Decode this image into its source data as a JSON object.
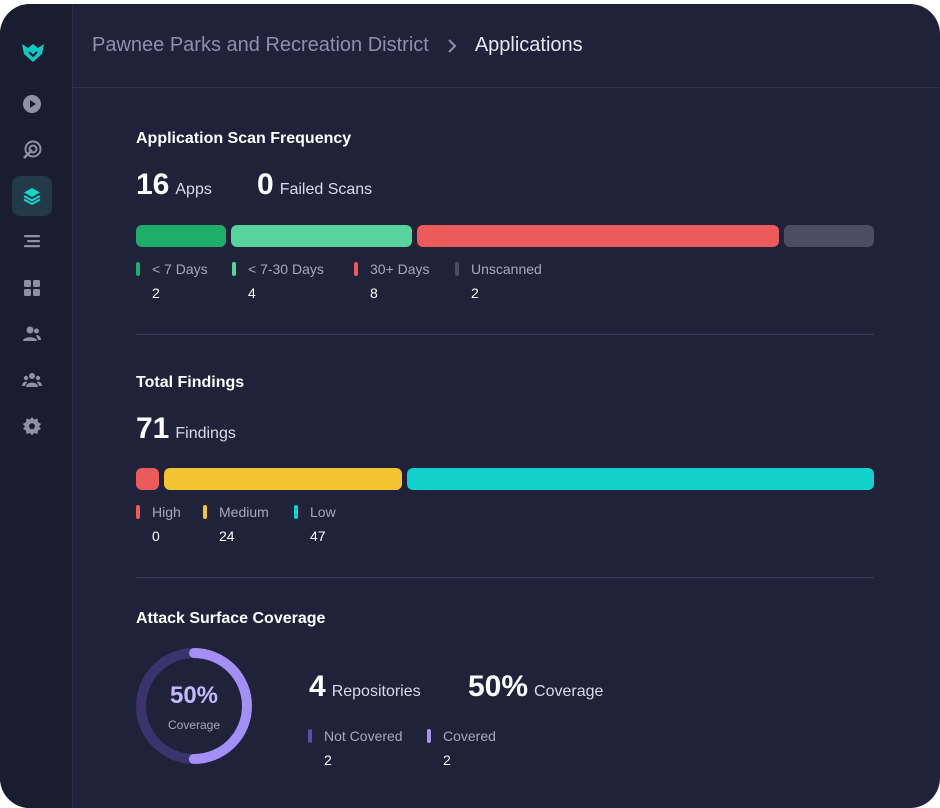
{
  "breadcrumb": {
    "parent": "Pawnee Parks and Recreation District",
    "current": "Applications"
  },
  "sidebar": {
    "items": [
      {
        "icon": "play-icon"
      },
      {
        "icon": "radar-icon"
      },
      {
        "icon": "layers-icon",
        "active": true
      },
      {
        "icon": "list-icon"
      },
      {
        "icon": "grid-icon"
      },
      {
        "icon": "users-icon"
      },
      {
        "icon": "team-icon"
      },
      {
        "icon": "gear-icon"
      }
    ]
  },
  "scan_frequency": {
    "title": "Application Scan Frequency",
    "apps_count": "16",
    "apps_label": "Apps",
    "failed_count": "0",
    "failed_label": "Failed Scans",
    "legend": [
      {
        "label": "< 7 Days",
        "value": "2",
        "color": "#1fae6a"
      },
      {
        "label": "< 7-30 Days",
        "value": "4",
        "color": "#56d49b"
      },
      {
        "label": "30+ Days",
        "value": "8",
        "color": "#ec5b5b"
      },
      {
        "label": "Unscanned",
        "value": "2",
        "color": "#4a4d64"
      }
    ]
  },
  "findings": {
    "title": "Total Findings",
    "count": "71",
    "label": "Findings",
    "legend": [
      {
        "label": "High",
        "value": "0",
        "color": "#ec5b5b"
      },
      {
        "label": "Medium",
        "value": "24",
        "color": "#f2c431"
      },
      {
        "label": "Low",
        "value": "47",
        "color": "#12d1cc"
      }
    ]
  },
  "coverage": {
    "title": "Attack Surface Coverage",
    "percent_text": "50%",
    "percent_label": "Coverage",
    "percent_value": 0.5,
    "repos_count": "4",
    "repos_label": "Repositories",
    "coverage_big": "50%",
    "coverage_big_label": "Coverage",
    "legend": [
      {
        "label": "Not Covered",
        "value": "2",
        "color": "#5a4ea6"
      },
      {
        "label": "Covered",
        "value": "2",
        "color": "#a894f7"
      }
    ]
  }
}
